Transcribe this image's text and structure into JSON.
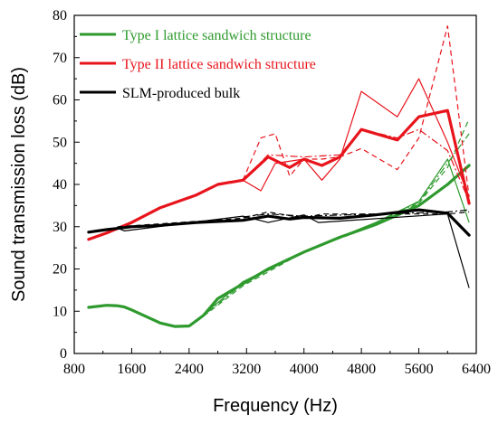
{
  "chart_data": {
    "type": "line",
    "xlabel": "Frequency (Hz)",
    "ylabel": "Sound transmission loss (dB)",
    "xlim": [
      800,
      6400
    ],
    "ylim": [
      0,
      80
    ],
    "xticks": [
      800,
      1600,
      2400,
      3200,
      4000,
      4800,
      5600,
      6400
    ],
    "yticks": [
      0,
      10,
      20,
      30,
      40,
      50,
      60,
      70,
      80
    ],
    "legend_position": "top-left",
    "series": [
      {
        "name": "Type I lattice sandwich structure",
        "color": "#2e9a2e",
        "mean": [
          [
            1000,
            10.9
          ],
          [
            1250,
            11.4
          ],
          [
            1400,
            11.3
          ],
          [
            1500,
            11.0
          ],
          [
            1600,
            10.3
          ],
          [
            2000,
            7.2
          ],
          [
            2200,
            6.4
          ],
          [
            2400,
            6.5
          ],
          [
            2600,
            9.0
          ],
          [
            2800,
            13.0
          ],
          [
            3150,
            16.5
          ],
          [
            3500,
            20.0
          ],
          [
            4000,
            24.0
          ],
          [
            4500,
            27.5
          ],
          [
            5000,
            30.5
          ],
          [
            5600,
            35.0
          ],
          [
            6000,
            40.0
          ],
          [
            6300,
            44.5
          ]
        ],
        "samples": [
          [
            [
              2500,
              7.8
            ],
            [
              3150,
              17.0
            ],
            [
              4000,
              24.2
            ],
            [
              5000,
              31.0
            ],
            [
              5600,
              36.0
            ],
            [
              6000,
              46.0
            ],
            [
              6300,
              31.0
            ]
          ],
          [
            [
              2500,
              7.5
            ],
            [
              3150,
              16.0
            ],
            [
              4000,
              24.0
            ],
            [
              5000,
              30.5
            ],
            [
              5600,
              35.5
            ],
            [
              6000,
              44.0
            ],
            [
              6300,
              55.5
            ]
          ],
          [
            [
              2500,
              7.6
            ],
            [
              3150,
              16.5
            ],
            [
              4000,
              24.1
            ],
            [
              5000,
              30.8
            ],
            [
              5600,
              35.8
            ],
            [
              6000,
              45.0
            ],
            [
              6300,
              52.0
            ]
          ]
        ]
      },
      {
        "name": "Type II lattice sandwich structure",
        "color": "#e8141c",
        "mean": [
          [
            1000,
            27.0
          ],
          [
            1250,
            28.5
          ],
          [
            1600,
            31.0
          ],
          [
            2000,
            34.5
          ],
          [
            2500,
            37.5
          ],
          [
            2800,
            40.0
          ],
          [
            3150,
            41.0
          ],
          [
            3500,
            46.5
          ],
          [
            3800,
            44.0
          ],
          [
            4000,
            46.0
          ],
          [
            4250,
            44.5
          ],
          [
            4500,
            46.5
          ],
          [
            4800,
            53.0
          ],
          [
            5300,
            50.5
          ],
          [
            5600,
            56.0
          ],
          [
            6000,
            57.5
          ],
          [
            6300,
            35.5
          ]
        ],
        "samples": [
          [
            [
              3150,
              41.0
            ],
            [
              3400,
              38.5
            ],
            [
              3600,
              45.0
            ],
            [
              4000,
              46.0
            ],
            [
              4250,
              41.0
            ],
            [
              4500,
              46.0
            ],
            [
              4800,
              62.0
            ],
            [
              5300,
              56.0
            ],
            [
              5600,
              65.0
            ],
            [
              6000,
              50.0
            ],
            [
              6300,
              37.0
            ]
          ],
          [
            [
              3150,
              41.0
            ],
            [
              3400,
              51.0
            ],
            [
              3600,
              52.0
            ],
            [
              3800,
              42.0
            ],
            [
              4000,
              46.0
            ],
            [
              4250,
              46.0
            ],
            [
              4500,
              46.5
            ],
            [
              4800,
              48.5
            ],
            [
              5300,
              43.5
            ],
            [
              5600,
              51.0
            ],
            [
              6000,
              77.5
            ],
            [
              6300,
              37.0
            ]
          ],
          [
            [
              3150,
              41.0
            ],
            [
              3500,
              47.0
            ],
            [
              4000,
              46.5
            ],
            [
              4500,
              47.0
            ],
            [
              4800,
              53.0
            ],
            [
              5300,
              51.0
            ],
            [
              5600,
              53.0
            ],
            [
              6000,
              48.0
            ],
            [
              6300,
              36.0
            ]
          ]
        ]
      },
      {
        "name": "SLM-produced bulk",
        "color": "#000000",
        "mean": [
          [
            1000,
            28.7
          ],
          [
            1250,
            29.3
          ],
          [
            1600,
            30.0
          ],
          [
            2000,
            30.3
          ],
          [
            2500,
            31.0
          ],
          [
            3150,
            31.5
          ],
          [
            3500,
            32.5
          ],
          [
            3800,
            31.8
          ],
          [
            4000,
            32.2
          ],
          [
            4500,
            32.0
          ],
          [
            5000,
            32.8
          ],
          [
            5600,
            34.0
          ],
          [
            6000,
            33.2
          ],
          [
            6300,
            28.0
          ]
        ],
        "samples": [
          [
            [
              1400,
              29.7
            ],
            [
              1500,
              29.0
            ],
            [
              3150,
              32.5
            ],
            [
              3500,
              31.0
            ],
            [
              4000,
              32.8
            ],
            [
              4200,
              31.0
            ],
            [
              6000,
              33.0
            ],
            [
              6300,
              15.5
            ]
          ],
          [
            [
              1400,
              30.0
            ],
            [
              3150,
              32.0
            ],
            [
              3500,
              33.5
            ],
            [
              4000,
              32.0
            ],
            [
              4250,
              33.0
            ],
            [
              6000,
              33.0
            ],
            [
              6300,
              33.5
            ]
          ],
          [
            [
              3150,
              32.3
            ],
            [
              3500,
              33.0
            ],
            [
              4000,
              32.5
            ],
            [
              6000,
              33.5
            ],
            [
              6300,
              34.0
            ]
          ]
        ]
      }
    ]
  }
}
